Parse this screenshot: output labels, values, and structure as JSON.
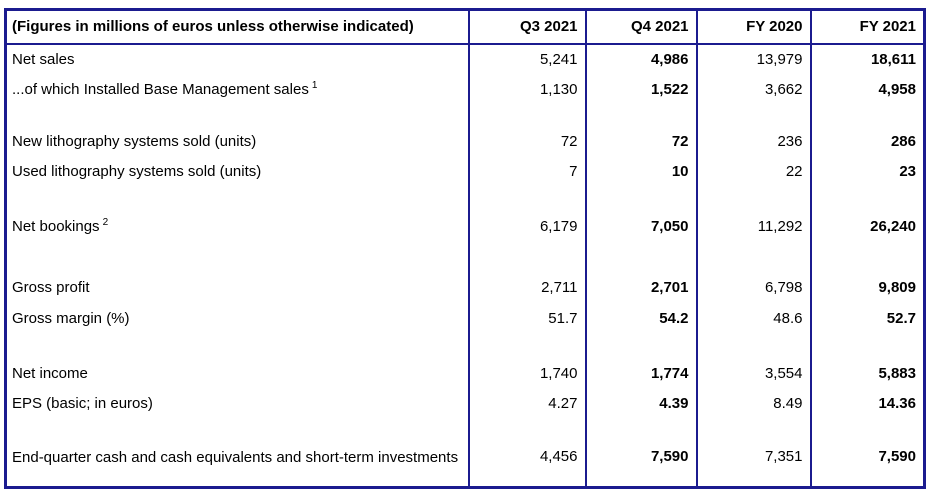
{
  "table": {
    "colors": {
      "border": "#1b1b8f",
      "text": "#000000",
      "background": "#ffffff"
    },
    "header": {
      "label": "(Figures in millions of euros unless otherwise indicated)",
      "columns": [
        "Q3 2021",
        "Q4 2021",
        "FY 2020",
        "FY 2021"
      ]
    },
    "bold_value_columns": [
      "Q4 2021",
      "FY 2021"
    ],
    "rows": [
      {
        "label": "Net sales",
        "values": [
          "5,241",
          "4,986",
          "13,979",
          "18,611"
        ]
      },
      {
        "label": "...of which Installed Base Management sales",
        "sup": "1",
        "values": [
          "1,130",
          "1,522",
          "3,662",
          "4,958"
        ]
      },
      {
        "spacer": true
      },
      {
        "label": "New lithography systems sold (units)",
        "values": [
          "72",
          "72",
          "236",
          "286"
        ]
      },
      {
        "label": "Used lithography systems sold (units)",
        "values": [
          "7",
          "10",
          "22",
          "23"
        ]
      },
      {
        "spacer": true
      },
      {
        "label": "Net bookings",
        "sup": "2",
        "values": [
          "6,179",
          "7,050",
          "11,292",
          "26,240"
        ]
      },
      {
        "spacer": true
      },
      {
        "label": "Gross profit",
        "values": [
          "2,711",
          "2,701",
          "6,798",
          "9,809"
        ]
      },
      {
        "label": "Gross margin (%)",
        "values": [
          "51.7",
          "54.2",
          "48.6",
          "52.7"
        ]
      },
      {
        "spacer": true
      },
      {
        "label": "Net income",
        "values": [
          "1,740",
          "1,774",
          "3,554",
          "5,883"
        ]
      },
      {
        "label": "EPS (basic; in euros)",
        "values": [
          "4.27",
          "4.39",
          "8.49",
          "14.36"
        ]
      },
      {
        "spacer": true
      },
      {
        "label": "End-quarter cash and cash equivalents and short-term investments",
        "values": [
          "4,456",
          "7,590",
          "7,351",
          "7,590"
        ]
      }
    ]
  }
}
